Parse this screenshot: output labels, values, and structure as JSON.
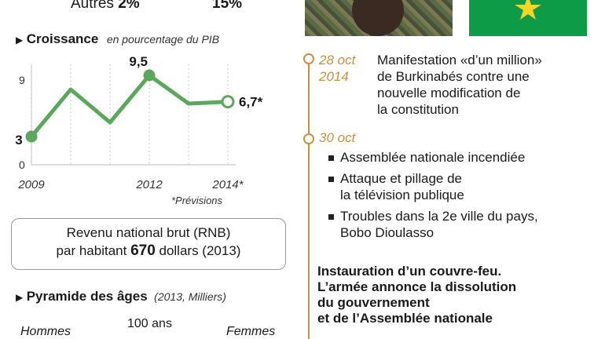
{
  "top_row": {
    "left_label_prefix": "Autres",
    "left_value": "2%",
    "right_value": "15%"
  },
  "growth": {
    "title": "Croissance",
    "subtitle": "en pourcentage du PIB",
    "footnote": "*Prévisions"
  },
  "chart_data": {
    "type": "line",
    "title": "Croissance",
    "subtitle": "en pourcentage du PIB",
    "x": [
      2009,
      2010,
      2011,
      2012,
      2013,
      2014
    ],
    "x_tick_labels": [
      "2009",
      "2012",
      "2014*"
    ],
    "x_tick_values": [
      2009,
      2012,
      2014
    ],
    "series": [
      {
        "values": [
          3,
          8,
          4.5,
          9.5,
          6.5,
          6.7
        ]
      }
    ],
    "point_labels": [
      {
        "x": 2009,
        "text": "3"
      },
      {
        "x": 2012,
        "text": "9,5"
      },
      {
        "x": 2014,
        "text": "6,7*"
      }
    ],
    "y_ticks": [
      "0",
      "9"
    ],
    "ylim": [
      0,
      10
    ],
    "xlim": [
      2009,
      2014
    ],
    "line_color": "#5aa85a",
    "highlight_point_color": "#5aa85a",
    "forecast_point": 2014,
    "grid": "vertical-dashed"
  },
  "rnb": {
    "line1": "Revenu national brut (RNB)",
    "line2_prefix": "par habitant",
    "value": "670",
    "line2_suffix": "dollars (2013)"
  },
  "pyramid": {
    "title": "Pyramide des âges",
    "subtitle": "(2013, Milliers)",
    "men_label": "Hommes",
    "age_label": "100 ans",
    "women_label": "Femmes"
  },
  "timeline": {
    "line_color": "#c8913f",
    "events": [
      {
        "date": "28 oct 2014",
        "date_line1": "28 oct",
        "date_line2": "2014",
        "text_lines": [
          "Manifestation «d’un million»",
          "de Burkinabés contre une",
          "nouvelle modification de",
          "la constitution"
        ]
      },
      {
        "date": "30 oct",
        "bullets": [
          {
            "lines": [
              "Assemblée nationale incendiée"
            ]
          },
          {
            "lines": [
              "Attaque et pillage de",
              "la télévision publique"
            ]
          },
          {
            "lines": [
              "Troubles dans la 2e ville du pays,",
              "Bobo Dioulasso"
            ]
          }
        ]
      }
    ],
    "bold_note_lines": [
      "Instauration d’un couvre-feu.",
      "L’armée annonce la dissolution",
      "du gouvernement",
      "et de l’Assemblée nationale"
    ]
  },
  "flag": {
    "green": "#0d9b48",
    "yellow": "#f3d52a",
    "star_color": "#f3d52a"
  },
  "photo": {
    "uniform_color": "#5b6a45"
  }
}
